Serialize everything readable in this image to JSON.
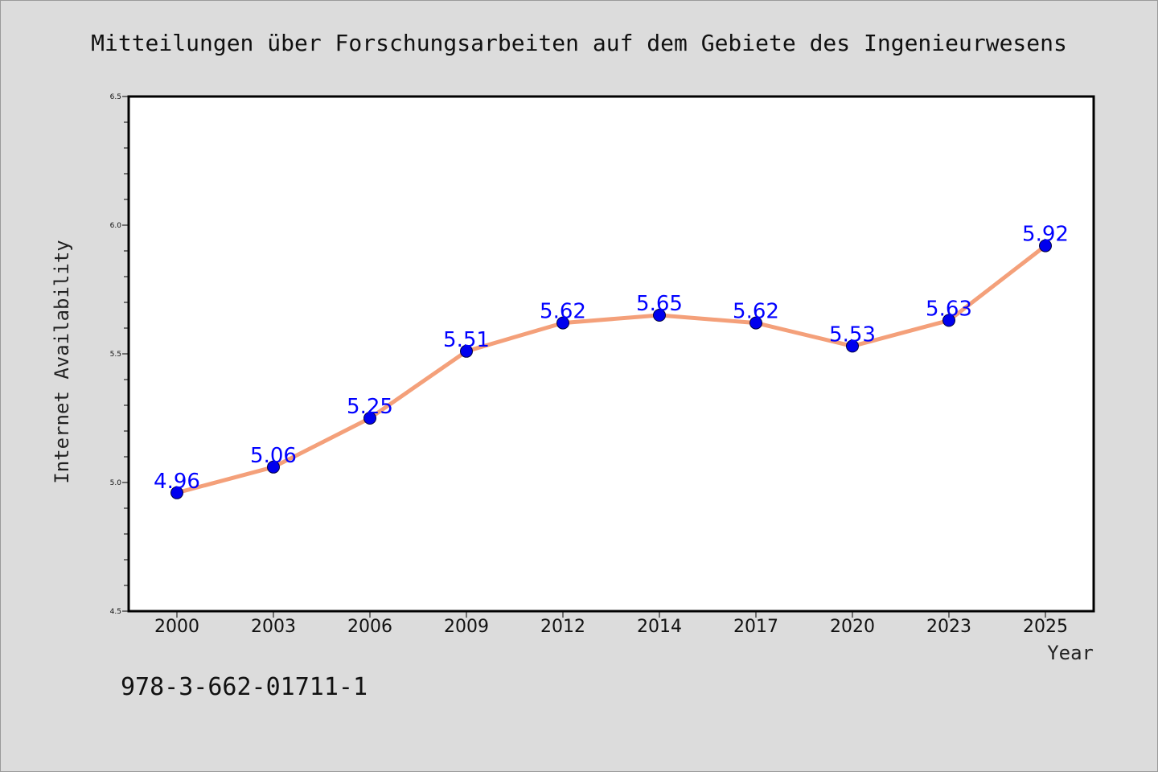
{
  "chart_data": {
    "type": "line",
    "title": "Mitteilungen über Forschungsarbeiten auf dem Gebiete des Ingenieurwesens",
    "xlabel": "Year",
    "ylabel": "Internet Availability",
    "categories": [
      "2000",
      "2003",
      "2006",
      "2009",
      "2012",
      "2014",
      "2017",
      "2020",
      "2023",
      "2025"
    ],
    "series": [
      {
        "values": [
          4.96,
          5.06,
          5.25,
          5.51,
          5.62,
          5.65,
          5.62,
          5.53,
          5.63,
          5.92
        ],
        "data_labels": [
          "4.96",
          "5.06",
          "5.25",
          "5.51",
          "5.62",
          "5.65",
          "5.62",
          "5.53",
          "5.63",
          "5.92"
        ],
        "line_color": "#f4a07a",
        "marker_color": "#0000ee"
      }
    ],
    "ylim": [
      4.5,
      6.5
    ],
    "yticks": [
      "4.5",
      "5.0",
      "5.5",
      "6.0",
      "6.5"
    ],
    "grid": false,
    "legend": "none"
  },
  "footer": {
    "isbn": "978-3-662-01711-1"
  },
  "colors": {
    "background": "#dcdcdc",
    "plot_background": "#ffffff",
    "line": "#f4a07a",
    "marker": "#0000ee",
    "data_label": "#0000ff"
  }
}
